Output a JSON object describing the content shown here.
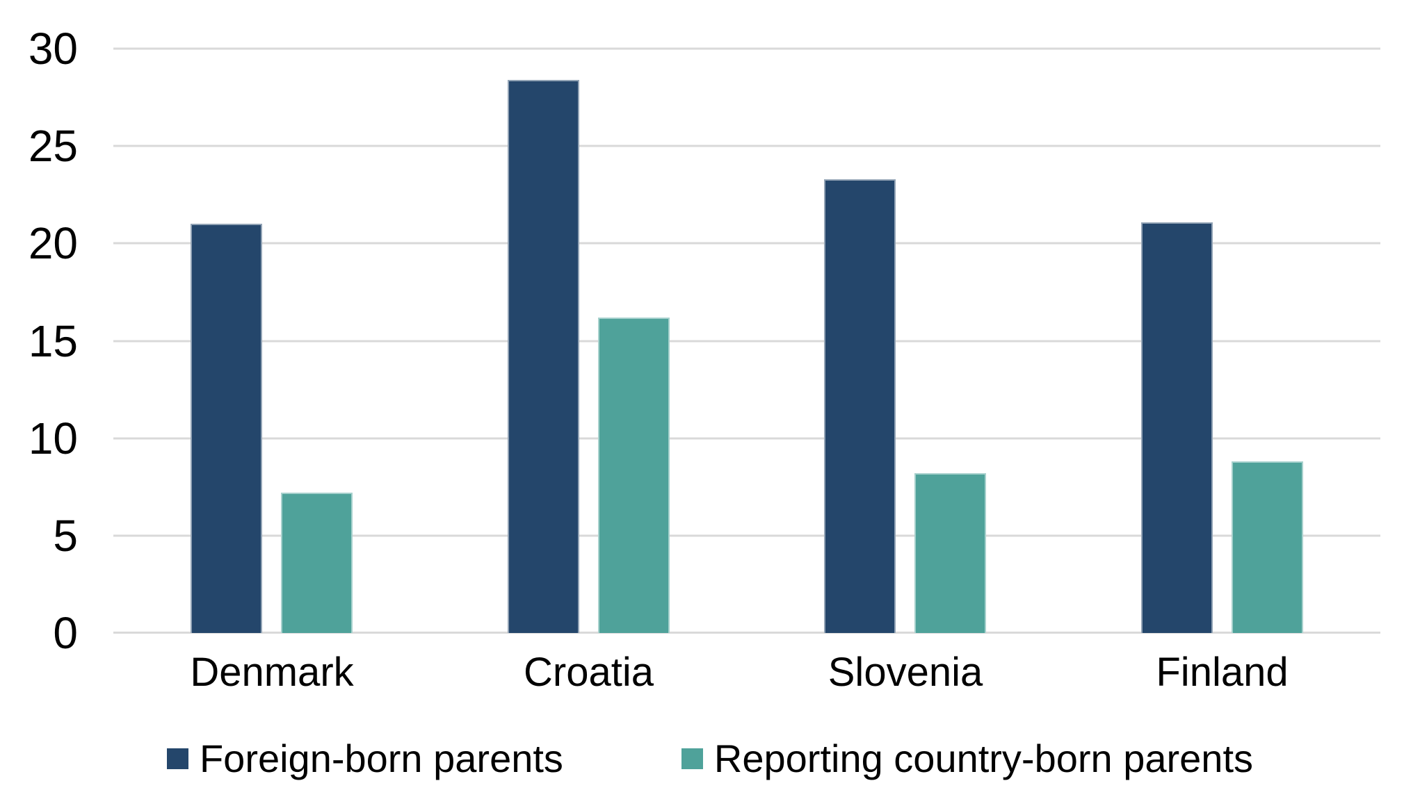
{
  "chart_data": {
    "type": "bar",
    "title": "",
    "xlabel": "",
    "ylabel": "",
    "categories": [
      "Denmark",
      "Croatia",
      "Slovenia",
      "Finland"
    ],
    "series": [
      {
        "name": "Foreign-born parents",
        "color": "#24466B",
        "values": [
          21.0,
          28.4,
          23.3,
          21.1
        ]
      },
      {
        "name": "Reporting country-born parents",
        "color": "#4FA29A",
        "values": [
          7.2,
          16.2,
          8.2,
          8.8
        ]
      }
    ],
    "ylim": [
      0,
      30
    ],
    "yticks": [
      0,
      5,
      10,
      15,
      20,
      25,
      30
    ],
    "grid": "horizontal",
    "gridline_color": "#D9D9D9",
    "axis_line_color": "#D9D9D9",
    "background_color": "#FFFFFF",
    "text_color": "#000000",
    "legend_position": "bottom"
  },
  "legend": {
    "items": [
      {
        "label": "Foreign-born parents",
        "swatch_color": "#24466B"
      },
      {
        "label": "Reporting country-born parents",
        "swatch_color": "#4FA29A"
      }
    ]
  }
}
